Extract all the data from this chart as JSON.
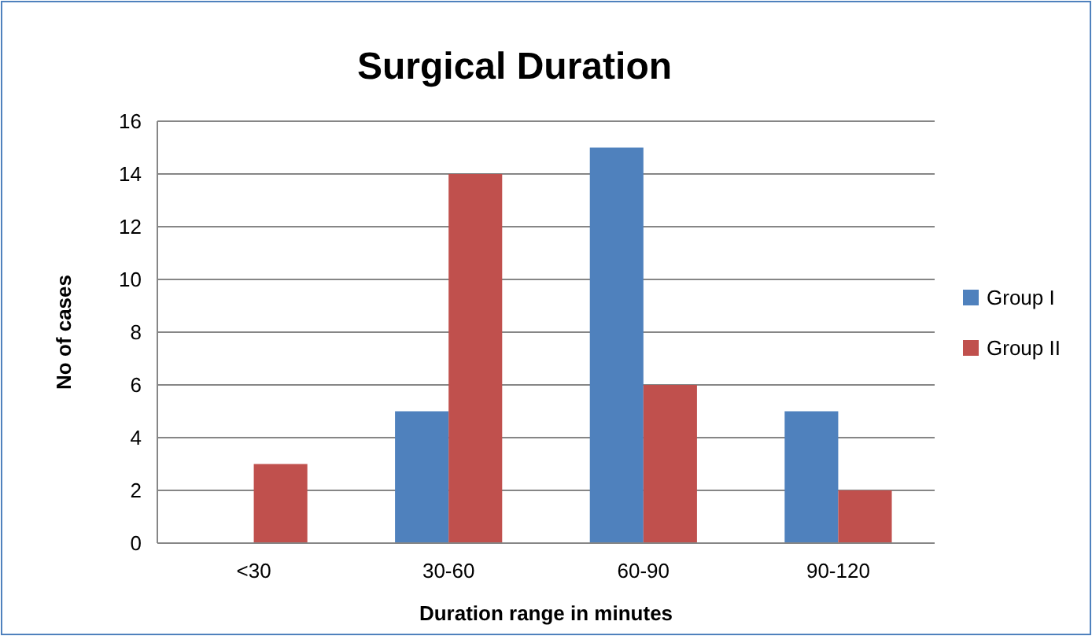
{
  "chart_data": {
    "type": "bar",
    "title": "Surgical Duration",
    "xlabel": "Duration range in minutes",
    "ylabel": "No of cases",
    "categories": [
      "<30",
      "30-60",
      "60-90",
      "90-120"
    ],
    "series": [
      {
        "name": "Group I",
        "color": "#4f81bd",
        "values": [
          0,
          5,
          15,
          5
        ]
      },
      {
        "name": "Group II",
        "color": "#c0504d",
        "values": [
          3,
          14,
          6,
          2
        ]
      }
    ],
    "ylim": [
      0,
      16
    ],
    "yticks": [
      0,
      2,
      4,
      6,
      8,
      10,
      12,
      14,
      16
    ],
    "grid": "y",
    "legend": "right"
  }
}
